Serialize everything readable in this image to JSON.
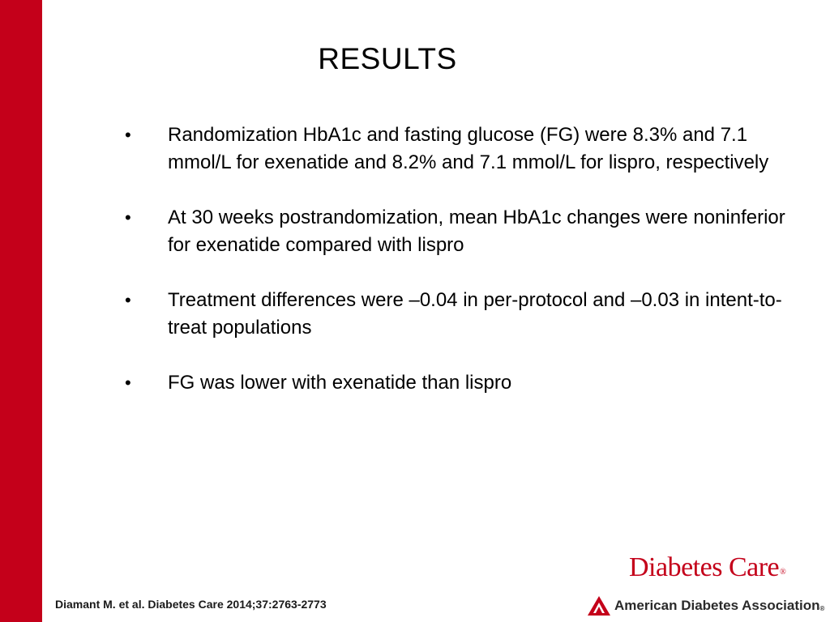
{
  "title": "RESULTS",
  "bullets": [
    {
      "marker": "•",
      "text": "Randomization HbA1c and fasting glucose (FG) were 8.3% and 7.1 mmol/L for exenatide and 8.2% and 7.1 mmol/L for lispro, respectively"
    },
    {
      "marker": "•",
      "text": "At 30 weeks postrandomization, mean HbA1c changes were noninferior for exenatide compared with lispro"
    },
    {
      "marker": "•",
      "text": "Treatment differences were –0.04 in per-protocol and –0.03 in intent-to-treat populations"
    },
    {
      "marker": "•",
      "text": "FG was lower with exenatide than lispro"
    }
  ],
  "citation": "Diamant M. et al. Diabetes Care 2014;37:2763-2773",
  "logos": {
    "journal": "Diabetes Care",
    "journal_mark": "®",
    "association": "American Diabetes Association",
    "association_mark": "®"
  },
  "colors": {
    "accent_red": "#c4001a",
    "text": "#000000"
  }
}
